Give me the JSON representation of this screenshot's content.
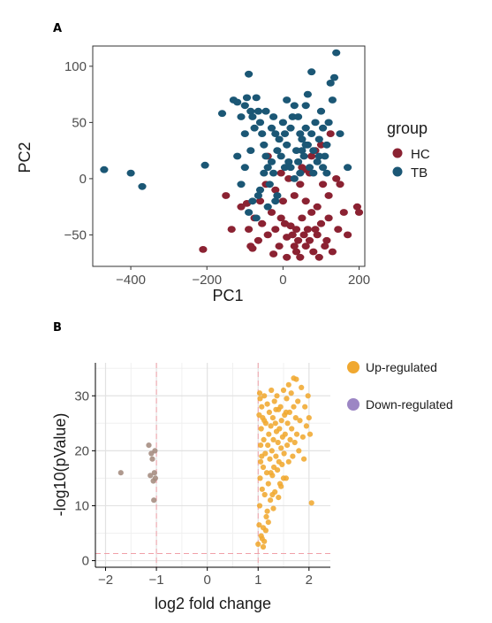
{
  "chart_data": [
    {
      "panel_label": "A",
      "type": "scatter",
      "xlabel": "PC1",
      "ylabel": "PC2",
      "xlim": [
        -500,
        215
      ],
      "ylim": [
        -78,
        118
      ],
      "xticks": [
        -400,
        -200,
        0,
        200
      ],
      "yticks": [
        -50,
        0,
        50,
        100
      ],
      "grid": false,
      "legend": {
        "title": "group",
        "position": "right"
      },
      "series": [
        {
          "name": "HC",
          "color": "#8B2232",
          "points": [
            [
              -210,
              -63
            ],
            [
              -150,
              -15
            ],
            [
              -135,
              -45
            ],
            [
              -95,
              -22
            ],
            [
              -90,
              -45
            ],
            [
              -85,
              -60
            ],
            [
              -80,
              -62
            ],
            [
              -65,
              -55
            ],
            [
              -55,
              -40
            ],
            [
              -45,
              -5
            ],
            [
              -40,
              -50
            ],
            [
              -30,
              -30
            ],
            [
              -25,
              -67
            ],
            [
              -20,
              -45
            ],
            [
              -10,
              -60
            ],
            [
              -5,
              -35
            ],
            [
              0,
              -20
            ],
            [
              5,
              -40
            ],
            [
              10,
              -52
            ],
            [
              10,
              -70
            ],
            [
              20,
              -42
            ],
            [
              25,
              -50
            ],
            [
              30,
              -60
            ],
            [
              30,
              -15
            ],
            [
              35,
              -45
            ],
            [
              40,
              -55
            ],
            [
              45,
              -5
            ],
            [
              45,
              -70
            ],
            [
              50,
              -35
            ],
            [
              50,
              10
            ],
            [
              55,
              -50
            ],
            [
              60,
              -20
            ],
            [
              60,
              -60
            ],
            [
              65,
              -45
            ],
            [
              70,
              5
            ],
            [
              70,
              -55
            ],
            [
              75,
              -30
            ],
            [
              80,
              -65
            ],
            [
              85,
              25
            ],
            [
              85,
              -45
            ],
            [
              90,
              -50
            ],
            [
              95,
              -70
            ],
            [
              100,
              -40
            ],
            [
              100,
              30
            ],
            [
              105,
              -5
            ],
            [
              110,
              -60
            ],
            [
              115,
              -55
            ],
            [
              120,
              -15
            ],
            [
              125,
              40
            ],
            [
              130,
              -65
            ],
            [
              140,
              0
            ],
            [
              150,
              -5
            ],
            [
              160,
              -30
            ],
            [
              170,
              -50
            ],
            [
              195,
              -25
            ],
            [
              200,
              -30
            ],
            [
              -40,
              20
            ],
            [
              -5,
              5
            ],
            [
              35,
              -65
            ],
            [
              55,
              8
            ],
            [
              90,
              -25
            ],
            [
              120,
              -35
            ],
            [
              145,
              -45
            ],
            [
              15,
              0
            ],
            [
              -60,
              -20
            ],
            [
              -20,
              -10
            ],
            [
              75,
              20
            ],
            [
              -110,
              -25
            ],
            [
              -75,
              -35
            ]
          ]
        },
        {
          "name": "TB",
          "color": "#1B5775",
          "points": [
            [
              -470,
              8
            ],
            [
              -400,
              5
            ],
            [
              -370,
              -7
            ],
            [
              -205,
              12
            ],
            [
              -160,
              58
            ],
            [
              -130,
              70
            ],
            [
              -120,
              68
            ],
            [
              -110,
              55
            ],
            [
              -100,
              65
            ],
            [
              -95,
              72
            ],
            [
              -90,
              93
            ],
            [
              -85,
              60
            ],
            [
              -80,
              55
            ],
            [
              -75,
              45
            ],
            [
              -70,
              72
            ],
            [
              -65,
              60
            ],
            [
              -60,
              50
            ],
            [
              -55,
              40
            ],
            [
              -50,
              30
            ],
            [
              -45,
              20
            ],
            [
              -40,
              10
            ],
            [
              -35,
              -5
            ],
            [
              -30,
              15
            ],
            [
              -25,
              5
            ],
            [
              -20,
              -20
            ],
            [
              -15,
              25
            ],
            [
              -10,
              35
            ],
            [
              -5,
              20
            ],
            [
              0,
              50
            ],
            [
              5,
              40
            ],
            [
              10,
              30
            ],
            [
              15,
              15
            ],
            [
              20,
              45
            ],
            [
              25,
              55
            ],
            [
              30,
              65
            ],
            [
              35,
              25
            ],
            [
              40,
              15
            ],
            [
              45,
              5
            ],
            [
              50,
              35
            ],
            [
              55,
              20
            ],
            [
              60,
              45
            ],
            [
              65,
              30
            ],
            [
              70,
              10
            ],
            [
              75,
              40
            ],
            [
              80,
              25
            ],
            [
              85,
              50
            ],
            [
              90,
              15
            ],
            [
              95,
              35
            ],
            [
              100,
              60
            ],
            [
              105,
              45
            ],
            [
              110,
              20
            ],
            [
              115,
              5
            ],
            [
              120,
              50
            ],
            [
              125,
              85
            ],
            [
              130,
              70
            ],
            [
              135,
              90
            ],
            [
              140,
              112
            ],
            [
              -100,
              10
            ],
            [
              -110,
              -5
            ],
            [
              -80,
              -20
            ],
            [
              -90,
              -30
            ],
            [
              -70,
              -35
            ],
            [
              -60,
              -10
            ],
            [
              -50,
              5
            ],
            [
              -40,
              -25
            ],
            [
              -20,
              40
            ],
            [
              10,
              70
            ],
            [
              40,
              55
            ],
            [
              65,
              75
            ],
            [
              150,
              40
            ],
            [
              170,
              10
            ],
            [
              -85,
              25
            ],
            [
              -30,
              45
            ],
            [
              5,
              10
            ],
            [
              30,
              0
            ],
            [
              60,
              30
            ],
            [
              75,
              95
            ],
            [
              95,
              20
            ],
            [
              115,
              30
            ],
            [
              -65,
              -15
            ],
            [
              -120,
              20
            ],
            [
              -45,
              60
            ],
            [
              20,
              10
            ],
            [
              45,
              40
            ],
            [
              80,
              5
            ],
            [
              -15,
              -15
            ],
            [
              -100,
              40
            ],
            [
              60,
              65
            ],
            [
              105,
              10
            ],
            [
              50,
              25
            ],
            [
              -25,
              55
            ]
          ]
        }
      ]
    },
    {
      "panel_label": "B",
      "type": "scatter",
      "xlabel": "log2 fold change",
      "ylabel": "-log10(pValue)",
      "xlim": [
        -2.2,
        2.42
      ],
      "ylim": [
        -1.2,
        36
      ],
      "xticks": [
        -2,
        -1,
        0,
        1,
        2
      ],
      "yticks": [
        0,
        10,
        20,
        30
      ],
      "grid": true,
      "reference_lines": {
        "vertical": [
          -1,
          1
        ],
        "horizontal": [
          1.3
        ]
      },
      "legend": {
        "position": "right"
      },
      "series": [
        {
          "name": "Up-regulated",
          "color": "#F0A830",
          "points": [
            [
              1.0,
              3
            ],
            [
              1.02,
              6.5
            ],
            [
              1.03,
              10
            ],
            [
              1.04,
              15
            ],
            [
              1.05,
              18
            ],
            [
              1.05,
              21
            ],
            [
              1.06,
              24
            ],
            [
              1.07,
              28
            ],
            [
              1.08,
              13
            ],
            [
              1.09,
              26
            ],
            [
              1.1,
              2.5
            ],
            [
              1.1,
              17
            ],
            [
              1.11,
              22
            ],
            [
              1.12,
              30
            ],
            [
              1.13,
              12
            ],
            [
              1.14,
              19.5
            ],
            [
              1.15,
              25
            ],
            [
              1.16,
              8
            ],
            [
              1.17,
              16
            ],
            [
              1.18,
              28.5
            ],
            [
              1.19,
              21
            ],
            [
              1.2,
              14
            ],
            [
              1.21,
              23
            ],
            [
              1.22,
              27
            ],
            [
              1.23,
              18.5
            ],
            [
              1.24,
              11
            ],
            [
              1.25,
              24.5
            ],
            [
              1.26,
              31
            ],
            [
              1.27,
              20
            ],
            [
              1.28,
              15.5
            ],
            [
              1.29,
              26
            ],
            [
              1.3,
              22
            ],
            [
              1.31,
              17
            ],
            [
              1.32,
              29
            ],
            [
              1.33,
              12.5
            ],
            [
              1.34,
              25
            ],
            [
              1.35,
              19
            ],
            [
              1.36,
              23.5
            ],
            [
              1.37,
              30
            ],
            [
              1.38,
              16.5
            ],
            [
              1.39,
              21.5
            ],
            [
              1.4,
              27.5
            ],
            [
              1.41,
              18
            ],
            [
              1.42,
              24
            ],
            [
              1.43,
              14
            ],
            [
              1.44,
              28
            ],
            [
              1.45,
              20.5
            ],
            [
              1.46,
              25.5
            ],
            [
              1.47,
              17.5
            ],
            [
              1.48,
              22.5
            ],
            [
              1.5,
              31
            ],
            [
              1.51,
              19.5
            ],
            [
              1.52,
              26.5
            ],
            [
              1.53,
              23
            ],
            [
              1.55,
              15
            ],
            [
              1.56,
              29.5
            ],
            [
              1.57,
              21
            ],
            [
              1.58,
              25
            ],
            [
              1.6,
              18
            ],
            [
              1.62,
              27
            ],
            [
              1.63,
              22
            ],
            [
              1.65,
              30.5
            ],
            [
              1.66,
              24
            ],
            [
              1.68,
              19
            ],
            [
              1.7,
              28
            ],
            [
              1.72,
              21.5
            ],
            [
              1.74,
              26
            ],
            [
              1.75,
              33
            ],
            [
              1.76,
              23
            ],
            [
              1.78,
              29
            ],
            [
              1.8,
              20
            ],
            [
              1.82,
              25.5
            ],
            [
              1.85,
              31.5
            ],
            [
              1.88,
              22.5
            ],
            [
              1.9,
              18.5
            ],
            [
              1.92,
              28
            ],
            [
              1.95,
              24.5
            ],
            [
              1.98,
              30
            ],
            [
              2.0,
              26
            ],
            [
              2.02,
              23
            ],
            [
              2.05,
              10.5
            ],
            [
              1.08,
              4
            ],
            [
              1.15,
              5.5
            ],
            [
              1.2,
              7
            ],
            [
              1.3,
              9.5
            ],
            [
              1.4,
              11.5
            ],
            [
              1.45,
              13.5
            ],
            [
              1.03,
              30.5
            ],
            [
              1.07,
              19
            ],
            [
              1.12,
              25.5
            ],
            [
              1.25,
              16
            ],
            [
              1.35,
              27.5
            ],
            [
              1.6,
              32
            ],
            [
              1.7,
              33.2
            ],
            [
              1.5,
              15
            ],
            [
              1.55,
              27
            ],
            [
              1.28,
              12
            ],
            [
              1.18,
              9
            ],
            [
              1.1,
              6
            ],
            [
              1.06,
              4.5
            ],
            [
              1.12,
              3.5
            ],
            [
              1.02,
              26.5
            ],
            [
              1.04,
              29.5
            ]
          ]
        },
        {
          "name": "Down-regulated",
          "color": "#9C86C4",
          "points": [
            [
              -1.7,
              16
            ],
            [
              -1.15,
              21
            ],
            [
              -1.12,
              15.5
            ],
            [
              -1.1,
              19.5
            ],
            [
              -1.08,
              18.5
            ],
            [
              -1.06,
              14.5
            ],
            [
              -1.05,
              11
            ],
            [
              -1.04,
              16
            ],
            [
              -1.03,
              20
            ],
            [
              -1.02,
              15
            ]
          ]
        }
      ]
    }
  ]
}
